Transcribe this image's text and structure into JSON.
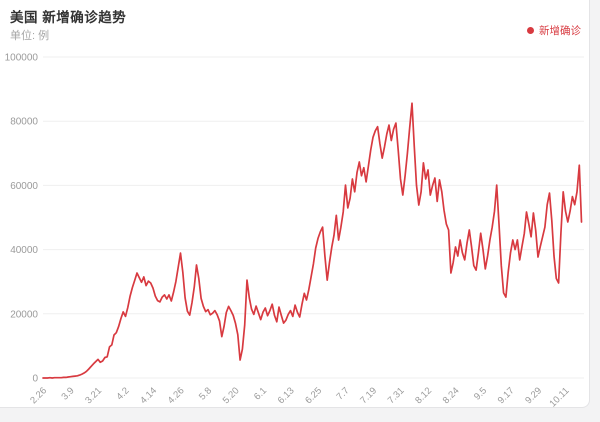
{
  "page": {
    "title": "美国 新增确诊趋势",
    "subtitle": "单位: 例"
  },
  "legend": {
    "label": "新增确诊",
    "color": "#d83a40"
  },
  "colors": {
    "line": "#d83a40",
    "grid": "#efefef",
    "axis_text": "#9b9b9b",
    "title_text": "#333333",
    "subtitle_text": "#a6a6a6",
    "card_bg": "#ffffff",
    "page_bg": "#f3f3f4"
  },
  "chart_data": {
    "type": "line",
    "title": "美国 新增确诊趋势",
    "unit_label": "单位: 例",
    "xlabel": "",
    "ylabel": "",
    "ylim": [
      0,
      100000
    ],
    "y_ticks": [
      0,
      20000,
      40000,
      60000,
      80000,
      100000
    ],
    "grid": true,
    "legend_position": "top-right",
    "x_tick_labels": [
      "2.26",
      "3.9",
      "3.21",
      "4.2",
      "4.14",
      "4.26",
      "5.8",
      "5.20",
      "6.1",
      "6.13",
      "6.25",
      "7.7",
      "7.19",
      "7.31",
      "8.12",
      "8.24",
      "9.5",
      "9.17",
      "9.29",
      "10.11"
    ],
    "x_tick_interval_days": 12,
    "series": [
      {
        "name": "新增确诊",
        "color": "#d83a40",
        "start_date": "2.26",
        "frequency": "daily",
        "values": [
          0,
          0,
          0,
          100,
          0,
          100,
          100,
          100,
          100,
          200,
          200,
          300,
          400,
          500,
          600,
          700,
          900,
          1200,
          1600,
          2100,
          2800,
          3600,
          4400,
          5100,
          5800,
          4900,
          5300,
          6400,
          6600,
          9700,
          10300,
          13400,
          14100,
          16000,
          18500,
          20600,
          19200,
          22000,
          25500,
          28200,
          30400,
          32700,
          31200,
          29800,
          31500,
          28800,
          30200,
          29600,
          28000,
          25500,
          24100,
          23700,
          25200,
          25900,
          24600,
          25900,
          24000,
          26800,
          30100,
          34500,
          38900,
          33000,
          25000,
          20800,
          19600,
          23500,
          28400,
          35200,
          31000,
          24800,
          22300,
          20700,
          21300,
          19700,
          20200,
          21000,
          19700,
          17800,
          12900,
          16000,
          20400,
          22300,
          21000,
          19500,
          17000,
          13500,
          5600,
          9000,
          16500,
          30500,
          25000,
          21500,
          19800,
          22400,
          20300,
          18200,
          20500,
          21800,
          19400,
          21000,
          23000,
          19500,
          17500,
          22100,
          19500,
          17100,
          18000,
          19800,
          21000,
          19200,
          22700,
          20500,
          19000,
          23000,
          26400,
          24300,
          27500,
          31500,
          35500,
          40500,
          43500,
          45500,
          47000,
          38000,
          30500,
          36000,
          40800,
          44500,
          50700,
          43000,
          47000,
          51700,
          60100,
          53000,
          56000,
          62000,
          58000,
          64000,
          67300,
          63000,
          65500,
          61100,
          66000,
          71000,
          75000,
          77000,
          78300,
          73000,
          68500,
          72000,
          76000,
          78800,
          74000,
          77500,
          79400,
          71000,
          62000,
          57000,
          63000,
          70000,
          78000,
          85600,
          72000,
          60000,
          53900,
          58000,
          67000,
          62000,
          64800,
          57000,
          60000,
          62300,
          55000,
          61700,
          58000,
          52300,
          48000,
          46100,
          32700,
          36000,
          40800,
          38000,
          43000,
          39000,
          36800,
          42000,
          46100,
          41000,
          35000,
          33600,
          39000,
          45100,
          40000,
          34000,
          38000,
          43000,
          47000,
          52000,
          60100,
          48000,
          35000,
          26500,
          25200,
          33000,
          39000,
          43000,
          40000,
          43000,
          36800,
          41000,
          45000,
          51700,
          48000,
          44000,
          51400,
          46000,
          37700,
          41000,
          44000,
          47000,
          54000,
          57600,
          49000,
          38000,
          31000,
          29600,
          45000,
          58000,
          52000,
          48600,
          52000,
          56500,
          54000,
          58000,
          66300,
          48600
        ]
      }
    ]
  }
}
